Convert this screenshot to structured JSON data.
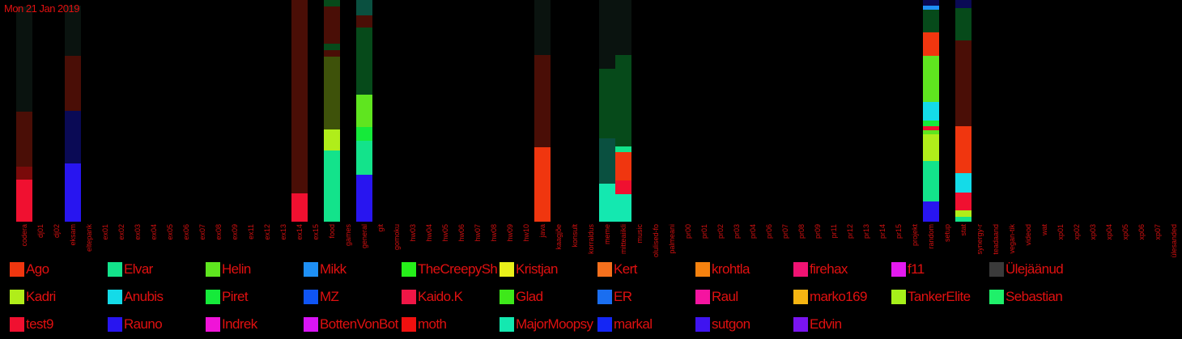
{
  "date_label": "Mon 21 Jan 2019",
  "chart_data": {
    "type": "bar",
    "stacked": true,
    "categories": [
      "codera",
      "dj01",
      "dj02",
      "eksam",
      "eltepank",
      "ex01",
      "ex02",
      "ex03",
      "ex04",
      "ex05",
      "ex06",
      "ex07",
      "ex08",
      "ex09",
      "ex11",
      "ex12",
      "ex13",
      "ex14",
      "ex15",
      "food",
      "games",
      "general",
      "git",
      "gomoku",
      "hw03",
      "hw04",
      "hw05",
      "hw06",
      "hw07",
      "hw08",
      "hw09",
      "hw10",
      "java",
      "kaagjõe",
      "konsult",
      "korraldus",
      "meme",
      "mitteaiikli",
      "music",
      "olulised-fo",
      "palmeani",
      "pr00",
      "pr01",
      "pr02",
      "pr03",
      "pr04",
      "pr06",
      "pr07",
      "pr08",
      "pr09",
      "pr11",
      "pr12",
      "pr13",
      "pr14",
      "pr15",
      "projekt",
      "random",
      "setup",
      "stat",
      "synergy-r",
      "teadaand",
      "vegan-tik",
      "videod",
      "wat",
      "xp01",
      "xp02",
      "xp03",
      "xp04",
      "xp05",
      "xp06",
      "xp07",
      "ülesanded"
    ],
    "ylim": [
      0,
      274
    ],
    "bars": [
      {
        "category": "codera",
        "segments": [
          {
            "series": "test9",
            "value": 52
          },
          {
            "series": "dark-red",
            "value": 16
          },
          {
            "series": "dark-maroon",
            "value": 68
          },
          {
            "series": "near-black",
            "value": 130
          }
        ]
      },
      {
        "category": "eksam",
        "segments": [
          {
            "series": "Rauno",
            "value": 72
          },
          {
            "series": "dark-navy",
            "value": 65
          },
          {
            "series": "dark-maroon",
            "value": 68
          },
          {
            "series": "near-black",
            "value": 62
          }
        ]
      },
      {
        "category": "ex14",
        "segments": [
          {
            "series": "test9",
            "value": 35
          },
          {
            "series": "dark-maroon",
            "value": 102
          },
          {
            "series": "dark-maroon",
            "value": 137
          }
        ]
      },
      {
        "category": "food",
        "segments": [
          {
            "series": "Elvar",
            "value": 88
          },
          {
            "series": "Kadri",
            "value": 26
          },
          {
            "series": "olive",
            "value": 90
          },
          {
            "series": "dark-maroon",
            "value": 8
          },
          {
            "series": "dark-green",
            "value": 8
          },
          {
            "series": "dark-maroon",
            "value": 46
          },
          {
            "series": "dark-green",
            "value": 8
          }
        ]
      },
      {
        "category": "general",
        "segments": [
          {
            "series": "Rauno",
            "value": 58
          },
          {
            "series": "Elvar",
            "value": 42
          },
          {
            "series": "Piret",
            "value": 17
          },
          {
            "series": "Helin",
            "value": 40
          },
          {
            "series": "dark-green",
            "value": 83
          },
          {
            "series": "dark-maroon",
            "value": 15
          },
          {
            "series": "dark-teal",
            "value": 19
          }
        ]
      },
      {
        "category": "java",
        "segments": [
          {
            "series": "Ago",
            "value": 92
          },
          {
            "series": "dark-maroon",
            "value": 114
          },
          {
            "series": "near-black",
            "value": 68
          }
        ]
      },
      {
        "category": "meme",
        "segments": [
          {
            "series": "MajorMoopsy",
            "value": 47
          },
          {
            "series": "dark-teal",
            "value": 56
          },
          {
            "series": "dark-green",
            "value": 86
          },
          {
            "series": "near-black",
            "value": 85
          }
        ]
      },
      {
        "category": "mitteaiikli",
        "segments": [
          {
            "series": "MajorMoopsy",
            "value": 34
          },
          {
            "series": "test9",
            "value": 17
          },
          {
            "series": "Ago",
            "value": 35
          },
          {
            "series": "Elvar",
            "value": 7
          },
          {
            "series": "dark-green",
            "value": 113
          },
          {
            "series": "near-black",
            "value": 68
          }
        ]
      },
      {
        "category": "random",
        "segments": [
          {
            "series": "Rauno",
            "value": 25
          },
          {
            "series": "Elvar",
            "value": 50
          },
          {
            "series": "Kadri",
            "value": 33
          },
          {
            "series": "Helin",
            "value": 5
          },
          {
            "series": "test9",
            "value": 5
          },
          {
            "series": "Piret",
            "value": 7
          },
          {
            "series": "Anubis",
            "value": 23
          },
          {
            "series": "Helin",
            "value": 57
          },
          {
            "series": "Ago",
            "value": 29
          },
          {
            "series": "dark-green",
            "value": 28
          },
          {
            "series": "Mikk",
            "value": 5
          },
          {
            "series": "dark-navy",
            "value": 7
          }
        ]
      },
      {
        "category": "stat",
        "segments": [
          {
            "series": "Elvar",
            "value": 6
          },
          {
            "series": "Kadri",
            "value": 8
          },
          {
            "series": "test9",
            "value": 22
          },
          {
            "series": "Anubis",
            "value": 24
          },
          {
            "series": "Ago",
            "value": 58
          },
          {
            "series": "dark-maroon",
            "value": 106
          },
          {
            "series": "dark-green",
            "value": 40
          },
          {
            "series": "dark-navy",
            "value": 10
          }
        ]
      }
    ],
    "legend": [
      {
        "name": "Ago",
        "color": "#f0360f"
      },
      {
        "name": "Elvar",
        "color": "#13e38b"
      },
      {
        "name": "Helin",
        "color": "#5fe51f"
      },
      {
        "name": "Mikk",
        "color": "#1e90f5"
      },
      {
        "name": "TheCreepySh",
        "color": "#26f01a"
      },
      {
        "name": "Kristjan",
        "color": "#e9f01a"
      },
      {
        "name": "Kert",
        "color": "#f5701d"
      },
      {
        "name": "krohtla",
        "color": "#f5820f"
      },
      {
        "name": "firehax",
        "color": "#f01373"
      },
      {
        "name": "f11",
        "color": "#e41af0"
      },
      {
        "name": "Ülejäänud",
        "color": "#3a3a3a"
      },
      {
        "name": "Kadri",
        "color": "#b0ed1a"
      },
      {
        "name": "Anubis",
        "color": "#14dbe8"
      },
      {
        "name": "Piret",
        "color": "#15ea3a"
      },
      {
        "name": "MZ",
        "color": "#0f55f5"
      },
      {
        "name": "Kaido.K",
        "color": "#f01646"
      },
      {
        "name": "Glad",
        "color": "#3ee81a"
      },
      {
        "name": "ER",
        "color": "#1a6ef0"
      },
      {
        "name": "Raul",
        "color": "#f514a0"
      },
      {
        "name": "marko169",
        "color": "#f5b512"
      },
      {
        "name": "TankerElite",
        "color": "#a6f01a"
      },
      {
        "name": "Sebastian",
        "color": "#1ff06a"
      },
      {
        "name": "test9",
        "color": "#f01030"
      },
      {
        "name": "Rauno",
        "color": "#2815f0"
      },
      {
        "name": "Indrek",
        "color": "#f014d8"
      },
      {
        "name": "BottenVonBot",
        "color": "#d914f5"
      },
      {
        "name": "moth",
        "color": "#f0100f"
      },
      {
        "name": "MajorMoopsy",
        "color": "#14e8b0"
      },
      {
        "name": "markal",
        "color": "#1426f5"
      },
      {
        "name": "sutgon",
        "color": "#3f14f0"
      },
      {
        "name": "Edvin",
        "color": "#7a14f0"
      }
    ],
    "dark_colors": {
      "near-black": "#0a130f",
      "dark-maroon": "#4a0e06",
      "dark-red": "#7a0a0a",
      "dark-navy": "#0a0a55",
      "dark-green": "#064a1a",
      "dark-teal": "#0a5040",
      "olive": "#3e520a"
    }
  }
}
